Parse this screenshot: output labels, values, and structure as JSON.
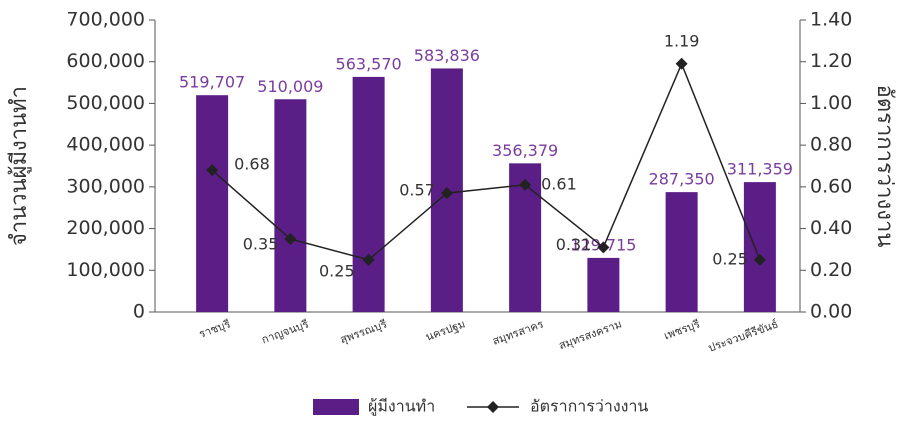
{
  "chart_data": {
    "type": "bar_line",
    "categories": [
      "ราชบุรี",
      "กาญจนบุรี",
      "สุพรรณบุรี",
      "นครปฐม",
      "สมุทรสาคร",
      "สมุทรสงคราม",
      "เพชรบุรี",
      "ประจวบคีรีขันธ์"
    ],
    "series": [
      {
        "name": "ผู้มีงานทำ",
        "color": "#5b1e86",
        "type": "bar",
        "values": [
          519707,
          510009,
          563570,
          583836,
          356379,
          129715,
          287350,
          311359
        ],
        "value_labels": [
          "519,707",
          "510,009",
          "563,570",
          "583,836",
          "356,379",
          "129,715",
          "287,350",
          "311,359"
        ]
      },
      {
        "name": "อัตราการว่างงาน",
        "color": "#222222",
        "type": "line",
        "axis": "y2",
        "values": [
          0.68,
          0.35,
          0.25,
          0.57,
          0.61,
          0.31,
          1.19,
          0.25
        ]
      }
    ],
    "ylabel": "จำนวนผู้มีงานทำ",
    "y2label": "อัตราการว่างงาน",
    "ylim": [
      0,
      700000
    ],
    "yticks": [
      0,
      {
        "value": 100000,
        "label": "100,000"
      },
      {
        "value": 200000,
        "label": "200,000"
      },
      {
        "value": 300000,
        "label": "300,000"
      },
      {
        "value": 400000,
        "label": "400,000"
      },
      {
        "value": 500000,
        "label": "500,000"
      },
      {
        "value": 600000,
        "label": "600,000"
      },
      {
        "value": 700000,
        "label": "700,000"
      }
    ],
    "y2lim": [
      0,
      1.4
    ],
    "y2ticks": [
      {
        "value": 0,
        "label": "0.00"
      },
      {
        "value": 0.2,
        "label": "0.20"
      },
      {
        "value": 0.4,
        "label": "0.40"
      },
      {
        "value": 0.6,
        "label": "0.60"
      },
      {
        "value": 0.8,
        "label": "0.80"
      },
      {
        "value": 1,
        "label": "1.00"
      },
      {
        "value": 1.2,
        "label": "1.20"
      },
      {
        "value": 1.4,
        "label": "1.40"
      }
    ],
    "legend": "bottom"
  }
}
